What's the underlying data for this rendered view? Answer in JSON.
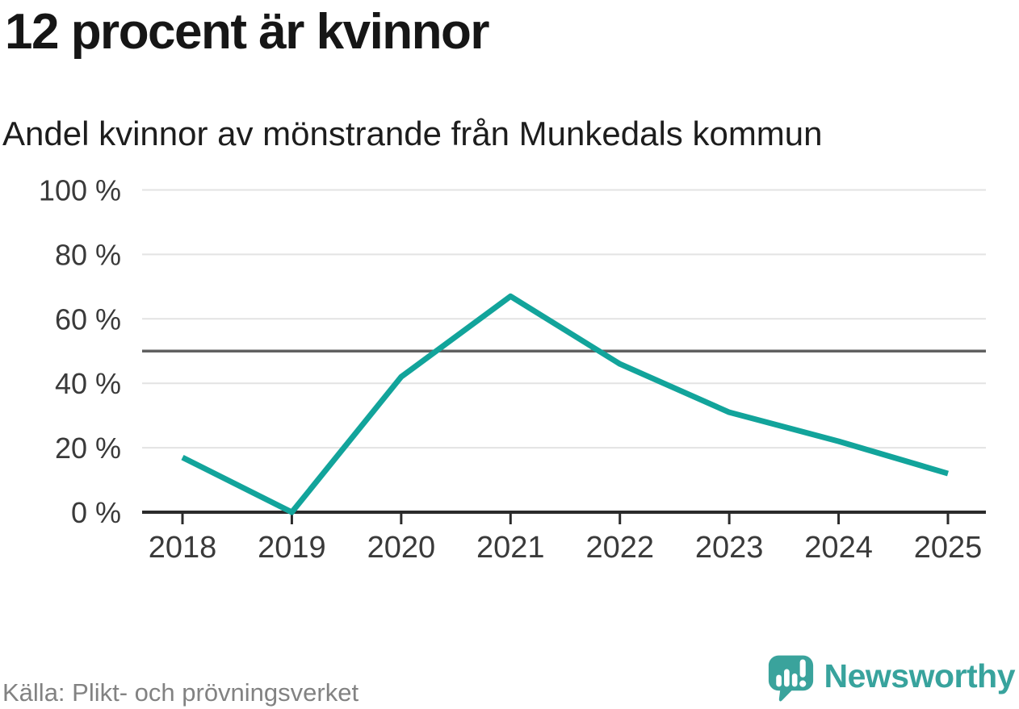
{
  "header": {
    "title": "12 procent är kvinnor",
    "subtitle": "Andel kvinnor av mönstrande från Munkedals kommun"
  },
  "chart_data": {
    "type": "line",
    "categories": [
      "2018",
      "2019",
      "2020",
      "2021",
      "2022",
      "2023",
      "2024",
      "2025"
    ],
    "values": [
      17,
      0,
      42,
      67,
      46,
      31,
      22,
      12
    ],
    "series_name": "Andel kvinnor",
    "unit": "%",
    "ylim": [
      0,
      100
    ],
    "yticks": [
      0,
      20,
      40,
      60,
      80,
      100
    ],
    "ref_line": {
      "value": 50
    },
    "grid": true,
    "legend": "none",
    "line_color": "#12a49b",
    "ref_line_color": "#606060",
    "grid_color": "#e3e3e3",
    "axis_color": "#2b2b2b",
    "label_color": "#3a3a3a"
  },
  "footer": {
    "source": "Källa: Plikt- och prövningsverket"
  },
  "logo": {
    "brand": "Newsworthy",
    "brand_color": "#38a39d",
    "icon": "speech-bubble-bar-chart-exclamation"
  }
}
